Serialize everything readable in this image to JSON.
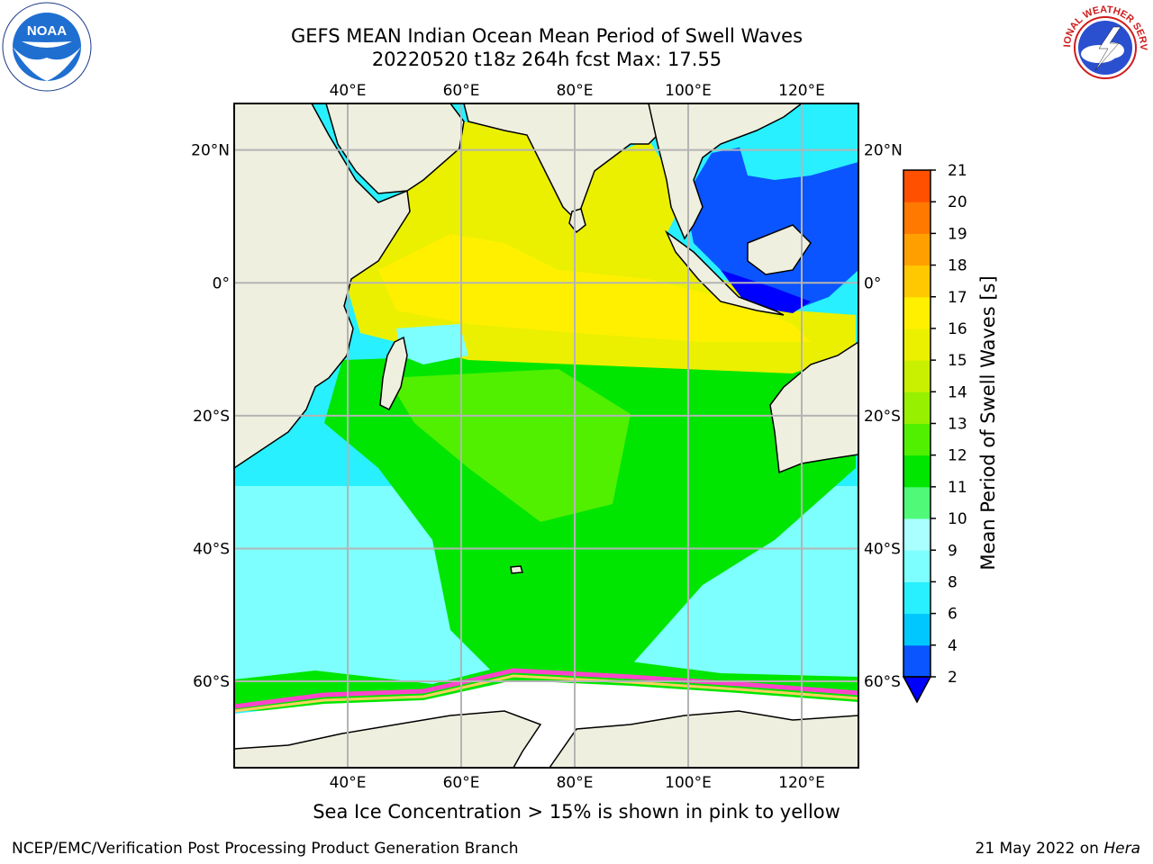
{
  "header": {
    "title_line1": "GEFS MEAN Indian Ocean Mean Period of Swell Waves",
    "title_line2": "20220520 t18z 264h fcst    Max: 17.55"
  },
  "logos": {
    "left": "NOAA",
    "right": "NATIONAL WEATHER SERVICE"
  },
  "map": {
    "lon_labels": [
      "40°E",
      "60°E",
      "80°E",
      "100°E",
      "120°E"
    ],
    "lat_labels": [
      "20°N",
      "0°",
      "20°S",
      "40°S",
      "60°S"
    ],
    "lon_values": [
      40,
      60,
      80,
      100,
      120
    ],
    "lat_values": [
      20,
      0,
      -20,
      -40,
      -60
    ],
    "lon_range": [
      20,
      130
    ],
    "lat_range": [
      -73,
      27
    ],
    "grid": true,
    "colors": {
      "land": "#efefdf",
      "ice": "#ffffff",
      "gridline": "#b4b4b4"
    }
  },
  "colorbar": {
    "label": "Mean Period of Swell Waves [s]",
    "tick_labels": [
      "2",
      "4",
      "6",
      "8",
      "9",
      "10",
      "11",
      "12",
      "13",
      "14",
      "15",
      "16",
      "17",
      "18",
      "19",
      "20",
      "21"
    ],
    "colors": [
      "#0a55ff",
      "#00c8ff",
      "#28f0ff",
      "#7dffff",
      "#aaffff",
      "#50fa78",
      "#00e600",
      "#50f000",
      "#96f000",
      "#c8f000",
      "#ebf000",
      "#fff000",
      "#ffc800",
      "#ffa000",
      "#ff7800",
      "#ff5000",
      "#ff1e00",
      "#ff0000"
    ],
    "under_color": "#0000ff"
  },
  "caption": "Sea Ice Concentration > 15% is shown in pink to yellow",
  "footer": {
    "left": "NCEP/EMC/Verification Post Processing Product Generation Branch",
    "right_date": "21 May 2022 on",
    "right_machine": "Hera"
  }
}
